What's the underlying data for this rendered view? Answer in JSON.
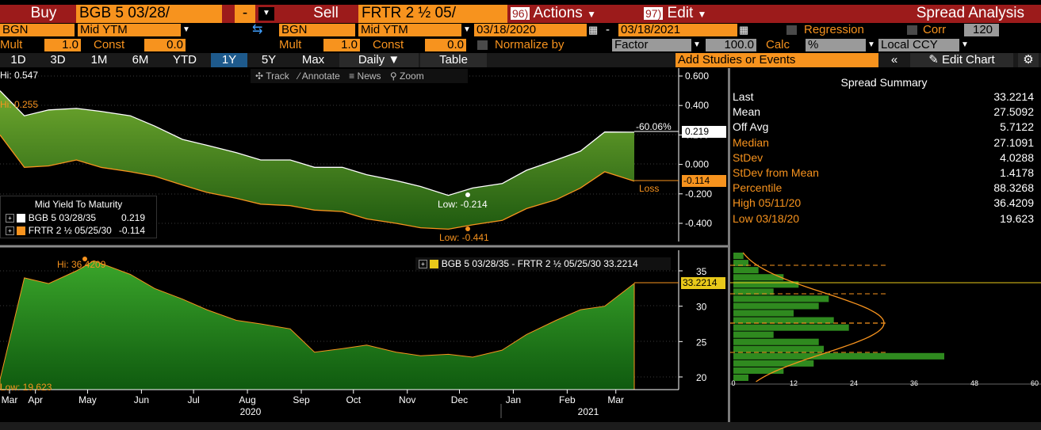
{
  "header": {
    "buy_label": "Buy",
    "buy_security": "BGB 5 03/28/",
    "minus_label": "-",
    "sell_label": "Sell",
    "sell_security": "FRTR 2 ½ 05/",
    "actions_num": "96)",
    "actions_label": "Actions",
    "edit_num": "97)",
    "edit_label": "Edit",
    "title": "Spread Analysis"
  },
  "row2": {
    "left_source": "BGN",
    "left_field": "Mid YTM",
    "right_source": "BGN",
    "right_field": "Mid YTM",
    "start_date": "03/18/2020",
    "dash": "-",
    "end_date": "03/18/2021",
    "regression_label": "Regression",
    "corr_label": "Corr",
    "corr_value": "120"
  },
  "row3": {
    "mult_label": "Mult",
    "mult_value": "1.0",
    "const_label": "Const",
    "const_value": "0.0",
    "mult2_label": "Mult",
    "mult2_value": "1.0",
    "const2_label": "Const",
    "const2_value": "0.0",
    "normalize_label": "Normalize by",
    "normalize_value": "Factor",
    "normalize_amount": "100.0",
    "calc_label": "Calc",
    "calc_value": "%",
    "ccy_value": "Local CCY"
  },
  "row4": {
    "periods": [
      "1D",
      "3D",
      "1M",
      "6M",
      "YTD",
      "1Y",
      "5Y",
      "Max"
    ],
    "selected_period": "1Y",
    "frequency": "Daily ▼",
    "table_label": "Table",
    "studies_placeholder": "Add Studies or Events",
    "collapse_label": "«",
    "edit_chart_label": "Edit Chart"
  },
  "toolbar": {
    "track": "Track",
    "annotate": "Annotate",
    "news": "News",
    "zoom": "Zoom"
  },
  "upper": {
    "hi_label": "Hi: 0.547",
    "hi_orange_label": "Hi: 0.255",
    "low_white": "Low: -0.214",
    "low_orange": "Low: -0.441",
    "pct_label": "-60.06%",
    "loss_label": "Loss",
    "current_white": "0.219",
    "current_orange": "-0.114",
    "y_ticks": [
      "0.600",
      "0.400",
      "0.200",
      "0.000",
      "-0.200",
      "-0.400"
    ],
    "legend_title": "Mid Yield To Maturity",
    "legend": [
      {
        "name": "BGB 5 03/28/35",
        "value": "0.219",
        "color": "#ffffff"
      },
      {
        "name": "FRTR 2 ½ 05/25/30",
        "value": "-0.114",
        "color": "#f7931e"
      }
    ]
  },
  "lower": {
    "hi_label": "Hi: 36.4209",
    "low_label": "Low: 19.623",
    "current": "33.2214",
    "legend_label": "BGB 5 03/28/35 - FRTR 2 ½ 05/25/30 33.2214",
    "y_ticks": [
      "35",
      "30",
      "25",
      "20"
    ],
    "hist_ticks": [
      "0",
      "12",
      "24",
      "36",
      "48",
      "60"
    ]
  },
  "x_axis": {
    "months": [
      "Mar",
      "Apr",
      "May",
      "Jun",
      "Jul",
      "Aug",
      "Sep",
      "Oct",
      "Nov",
      "Dec",
      "Jan",
      "Feb",
      "Mar"
    ],
    "year_left": "2020",
    "year_right": "2021"
  },
  "summary": {
    "title": "Spread Summary",
    "rows": [
      {
        "label": "Last",
        "value": "33.2214",
        "orange": false
      },
      {
        "label": "Mean",
        "value": "27.5092",
        "orange": false
      },
      {
        "label": "Off Avg",
        "value": "5.7122",
        "orange": false
      },
      {
        "label": "Median",
        "value": "27.1091",
        "orange": true
      },
      {
        "label": "StDev",
        "value": "4.0288",
        "orange": true
      },
      {
        "label": "StDev from Mean",
        "value": "1.4178",
        "orange": true
      },
      {
        "label": "Percentile",
        "value": "88.3268",
        "orange": true
      },
      {
        "label": "High 05/11/20",
        "value": "36.4209",
        "orange": true
      },
      {
        "label": "Low 03/18/20",
        "value": "19.623",
        "orange": true
      }
    ]
  },
  "colors": {
    "accent": "#f7931e",
    "header_red": "#9c1b1b",
    "fill_green": "#2e8b1e",
    "selected": "#1e5a8c"
  },
  "chart_data": [
    {
      "type": "area",
      "series": [
        {
          "name": "BGB 5 03/28/35",
          "x": [
            "2020-03-18",
            "2020-04-01",
            "2020-04-15",
            "2020-05-01",
            "2020-05-15",
            "2020-06-01",
            "2020-06-15",
            "2020-07-01",
            "2020-07-15",
            "2020-08-01",
            "2020-08-15",
            "2020-09-01",
            "2020-09-15",
            "2020-10-01",
            "2020-10-15",
            "2020-11-01",
            "2020-11-15",
            "2020-12-01",
            "2020-12-15",
            "2021-01-01",
            "2021-01-15",
            "2021-02-01",
            "2021-02-15",
            "2021-03-01",
            "2021-03-18"
          ],
          "values": [
            0.5,
            0.33,
            0.37,
            0.38,
            0.36,
            0.33,
            0.26,
            0.17,
            0.13,
            0.08,
            0.03,
            0.03,
            -0.02,
            -0.02,
            -0.07,
            -0.11,
            -0.15,
            -0.21,
            -0.16,
            -0.13,
            -0.04,
            0.03,
            0.09,
            0.22,
            0.219
          ]
        },
        {
          "name": "FRTR 2 ½ 05/25/30",
          "x": [
            "2020-03-18",
            "2020-04-01",
            "2020-04-15",
            "2020-05-01",
            "2020-05-15",
            "2020-06-01",
            "2020-06-15",
            "2020-07-01",
            "2020-07-15",
            "2020-08-01",
            "2020-08-15",
            "2020-09-01",
            "2020-09-15",
            "2020-10-01",
            "2020-10-15",
            "2020-11-01",
            "2020-11-15",
            "2020-12-01",
            "2020-12-15",
            "2021-01-01",
            "2021-01-15",
            "2021-02-01",
            "2021-02-15",
            "2021-03-01",
            "2021-03-18"
          ],
          "values": [
            0.2,
            -0.02,
            -0.01,
            0.03,
            -0.02,
            -0.05,
            -0.08,
            -0.14,
            -0.19,
            -0.23,
            -0.27,
            -0.28,
            -0.31,
            -0.32,
            -0.37,
            -0.4,
            -0.43,
            -0.44,
            -0.41,
            -0.38,
            -0.3,
            -0.24,
            -0.16,
            -0.05,
            -0.114
          ]
        }
      ],
      "ylim": [
        -0.5,
        0.62
      ],
      "ylabel": "Mid Yield To Maturity"
    },
    {
      "type": "area",
      "series": [
        {
          "name": "BGB 5 03/28/35 - FRTR 2 ½ 05/25/30",
          "x": [
            "2020-03-18",
            "2020-04-01",
            "2020-04-15",
            "2020-05-01",
            "2020-05-11",
            "2020-06-01",
            "2020-06-15",
            "2020-07-01",
            "2020-07-15",
            "2020-08-01",
            "2020-08-15",
            "2020-09-01",
            "2020-09-15",
            "2020-10-01",
            "2020-10-15",
            "2020-11-01",
            "2020-11-15",
            "2020-12-01",
            "2020-12-15",
            "2021-01-01",
            "2021-01-15",
            "2021-02-01",
            "2021-02-15",
            "2021-03-01",
            "2021-03-18"
          ],
          "values": [
            19.623,
            34.0,
            33.2,
            35.0,
            36.4209,
            34.5,
            32.5,
            31.0,
            29.5,
            28.0,
            27.5,
            26.8,
            23.5,
            24.0,
            24.5,
            23.5,
            23.0,
            23.2,
            22.8,
            23.8,
            26.0,
            28.0,
            29.5,
            30.0,
            33.2214
          ]
        }
      ],
      "ylim": [
        18.5,
        37.5
      ]
    },
    {
      "type": "bar",
      "orientation": "horizontal",
      "categories": [
        "37",
        "36",
        "35",
        "34",
        "33",
        "32",
        "31",
        "30",
        "29",
        "28",
        "27",
        "26",
        "25",
        "24",
        "23",
        "22",
        "21",
        "20"
      ],
      "values": [
        2,
        3,
        5,
        10,
        13,
        8,
        19,
        17,
        12,
        20,
        23,
        8,
        17,
        18,
        42,
        16,
        10,
        3
      ],
      "xlim": [
        0,
        60
      ]
    }
  ]
}
